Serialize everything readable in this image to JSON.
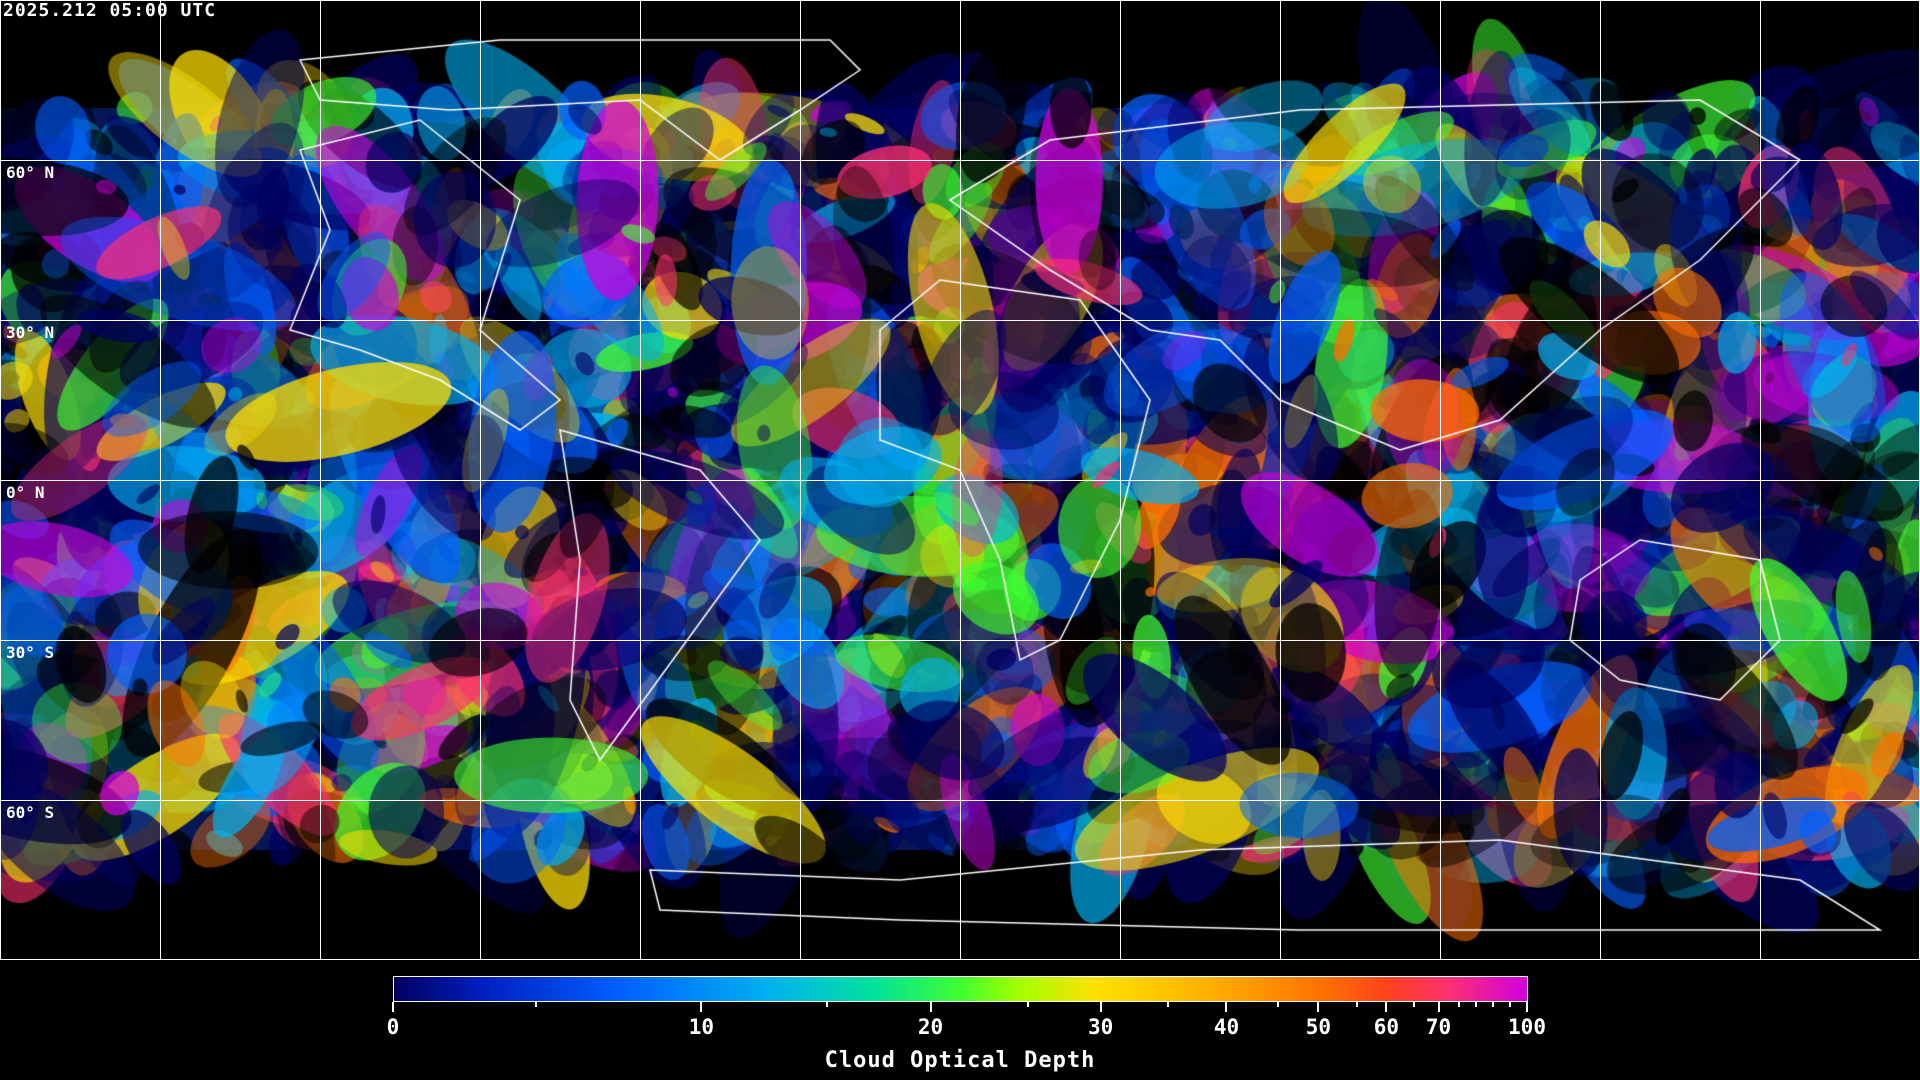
{
  "timestamp": "2025.212 05:00 UTC",
  "map": {
    "projection": "equirectangular",
    "longitude_grid_step_deg": 30,
    "latitude_labels": [
      "60° N",
      "30° N",
      "0° N",
      "30° S",
      "60° S"
    ],
    "gridline_color": "#ffffff",
    "coastline_color": "#ffffff",
    "no_data_color": "#000000"
  },
  "colorbar": {
    "title": "Cloud Optical Depth",
    "range": [
      0,
      100
    ],
    "tick_labels": [
      "0",
      "10",
      "20",
      "30",
      "40",
      "50",
      "60",
      "70",
      "100"
    ],
    "colors": [
      "#000060",
      "#0060ff",
      "#00b0f0",
      "#40ff30",
      "#ffe000",
      "#ff7000",
      "#ff3070",
      "#d000e0"
    ]
  }
}
